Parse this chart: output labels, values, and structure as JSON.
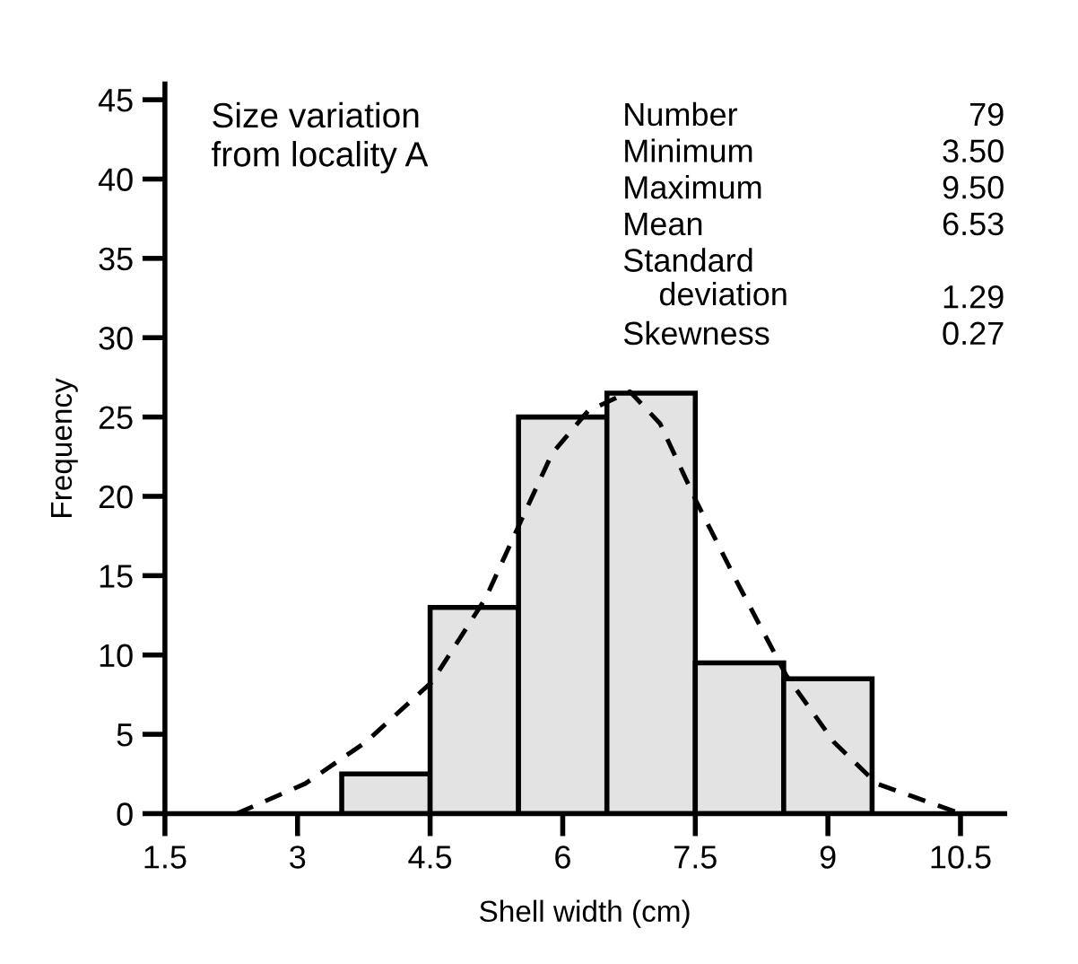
{
  "chart_data": {
    "type": "histogram",
    "xlabel": "Shell width (cm)",
    "ylabel": "Frequency",
    "bins": [
      3.5,
      4.5,
      5.5,
      6.5,
      7.5,
      8.5,
      9.5
    ],
    "values": [
      2.5,
      13,
      25,
      26.5,
      9.5,
      8.5
    ],
    "color": "#e3e3e3",
    "series": [
      {
        "type": "line",
        "color": "#000000",
        "line_style": "dashed",
        "x": [
          2.31,
          3.09,
          3.77,
          4.52,
          5.13,
          5.54,
          5.88,
          6.29,
          6.76,
          7.1,
          7.51,
          7.99,
          8.53,
          9.07,
          9.55,
          10.5
        ],
        "values": [
          0,
          1.9,
          4.5,
          8.3,
          13.6,
          18.6,
          22.7,
          25.4,
          26.6,
          24.6,
          19.7,
          14.4,
          8.7,
          4.5,
          1.9,
          0
        ]
      }
    ],
    "xlim": [
      1.5,
      11
    ],
    "ylim": [
      0,
      46
    ],
    "xticks": [
      1.5,
      3,
      4.5,
      6,
      7.5,
      9,
      10.5
    ],
    "yticks": [
      0,
      5,
      10,
      15,
      20,
      25,
      30,
      35,
      40,
      45
    ],
    "grid": false,
    "annotations": [
      "Size variation\nfrom locality A",
      "Number",
      "79",
      "Minimum",
      "3.50",
      "Maximum",
      "9.50",
      "Mean",
      "6.53",
      "Standard\n    deviation",
      "1.29",
      "Skewness",
      "0.27"
    ]
  }
}
